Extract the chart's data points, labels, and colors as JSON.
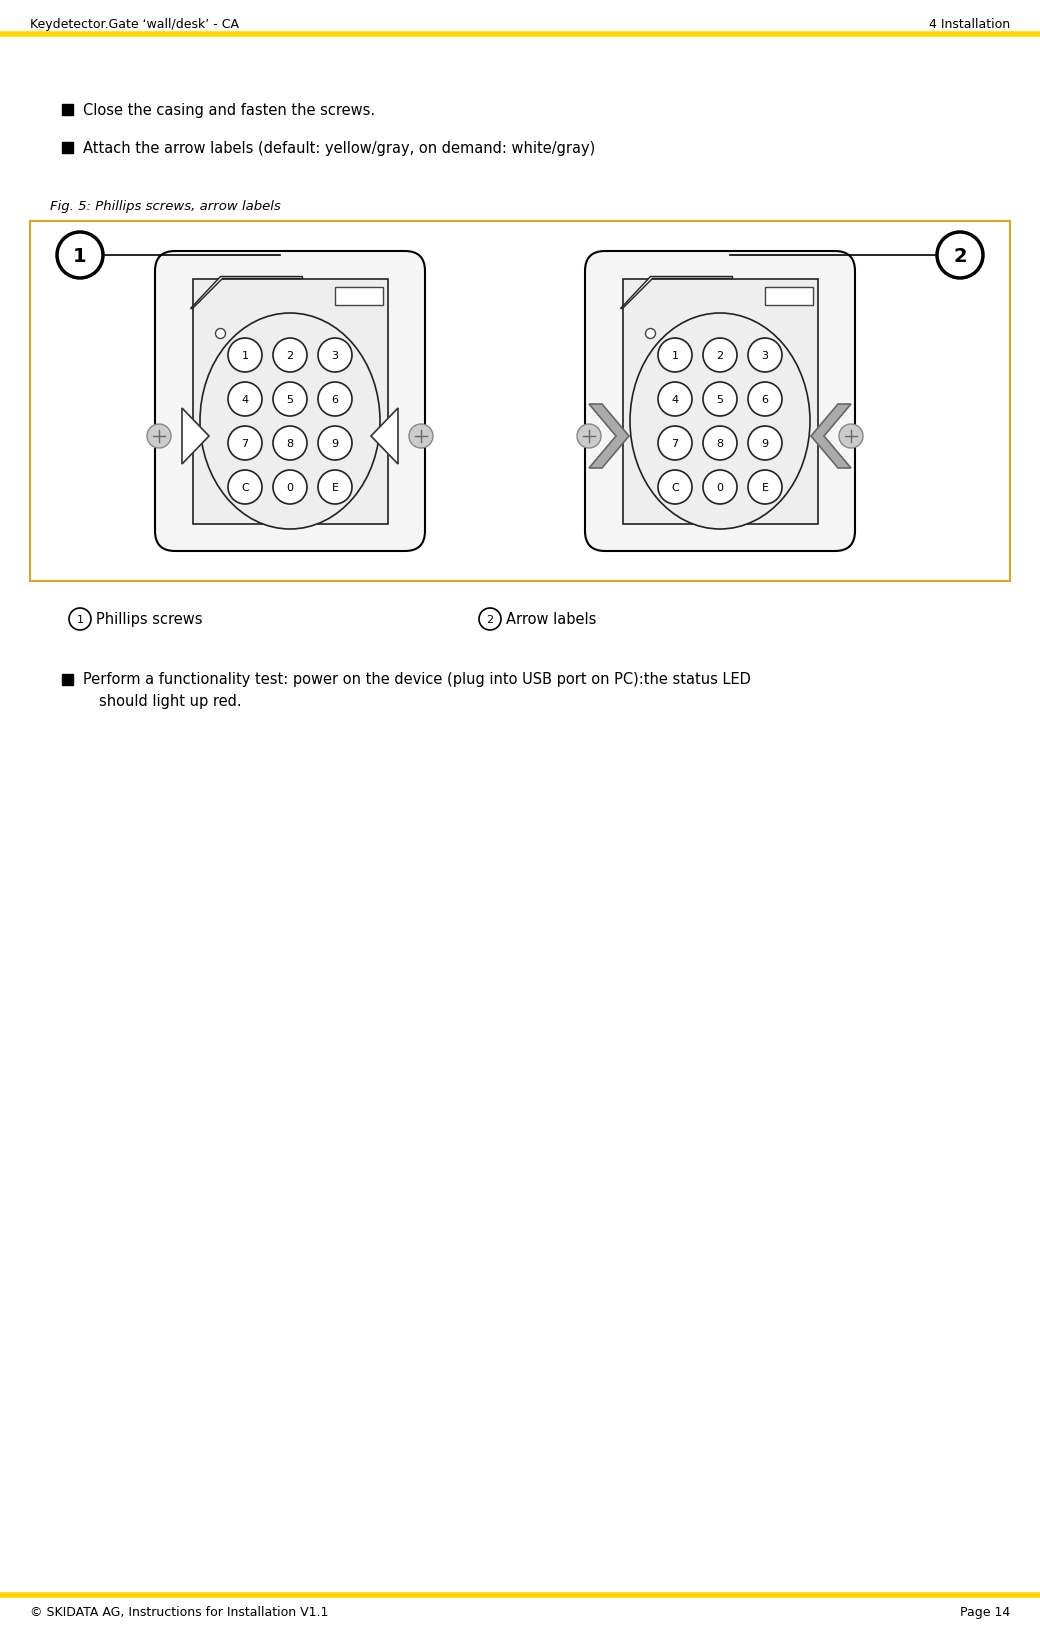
{
  "title_left": "Keydetector.Gate ‘wall/desk’ - CA",
  "title_right": "4 Installation",
  "footer_left": "© SKIDATA AG, Instructions for Installation V1.1",
  "footer_right": "Page 14",
  "header_line_color": "#FFD700",
  "footer_line_color": "#FFD700",
  "bullet1": "Close the casing and fasten the screws.",
  "bullet2": "Attach the arrow labels (default: yellow/gray, on demand: white/gray)",
  "fig_caption": "Fig. 5: Phillips screws, arrow labels",
  "label1": "①  Phillips screws",
  "label2": "②  Arrow labels",
  "bullet3_line1": "Perform a functionality test: power on the device (plug into USB port on PC):the status LED",
  "bullet3_line2": "should light up red.",
  "box_border_color": "#DAA520",
  "bg_color": "#FFFFFF"
}
